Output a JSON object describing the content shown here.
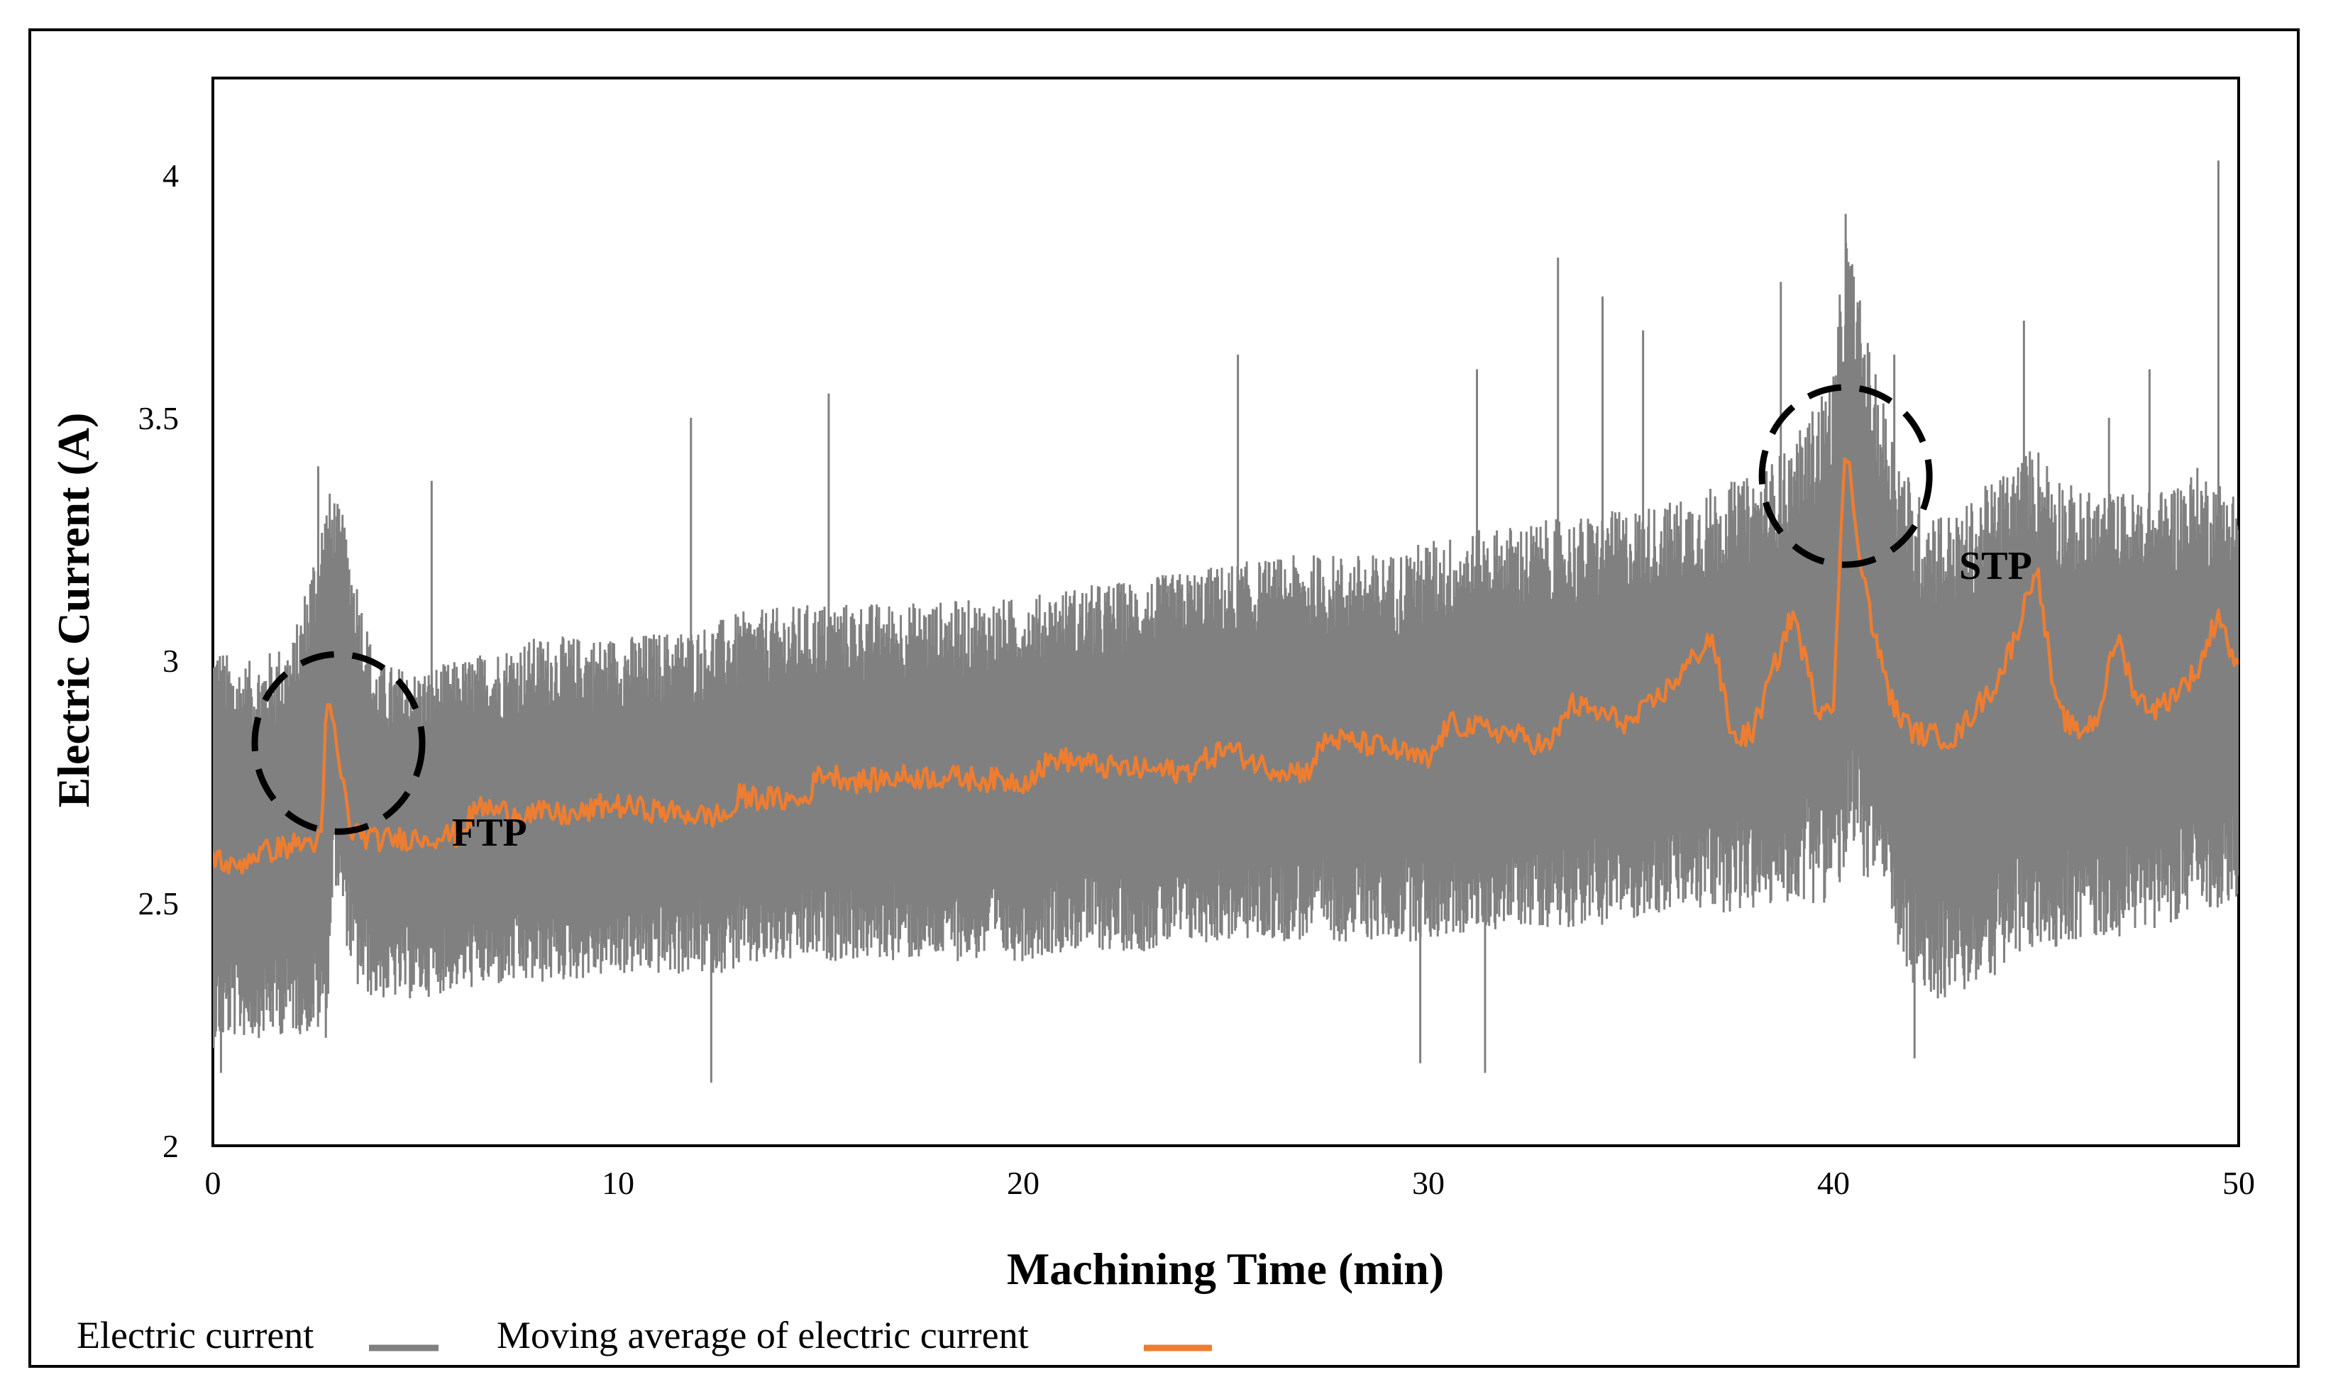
{
  "chart_data": {
    "type": "line",
    "xlabel": "Machining Time (min)",
    "ylabel": "Electric Current (A)",
    "xlim": [
      0,
      50
    ],
    "ylim": [
      2,
      4.2
    ],
    "x_ticks": [
      0,
      10,
      20,
      30,
      40,
      50
    ],
    "y_ticks": [
      2,
      2.5,
      3,
      3.5,
      4
    ],
    "grid": false,
    "legend_position": "bottom-left",
    "colors": {
      "electric_current": "#808080",
      "moving_average": "#ED7D31"
    },
    "series": [
      {
        "name": "Electric current",
        "x": [
          0,
          0.5,
          1,
          2,
          2.8,
          3,
          3.5,
          4,
          5,
          6,
          8,
          10,
          12,
          13,
          15,
          17,
          20,
          21,
          23,
          25,
          27,
          29,
          30,
          32,
          34,
          36,
          37,
          38,
          39,
          40,
          40.3,
          41,
          42,
          43,
          44,
          45,
          46,
          47,
          48,
          49,
          50
        ],
        "upper_envelope": [
          3.05,
          3.0,
          3.0,
          3.05,
          3.35,
          3.35,
          3.2,
          3.0,
          2.98,
          3.0,
          3.05,
          3.05,
          3.07,
          3.1,
          3.12,
          3.12,
          3.13,
          3.15,
          3.17,
          3.2,
          3.22,
          3.22,
          3.25,
          3.28,
          3.3,
          3.33,
          3.36,
          3.38,
          3.45,
          3.6,
          3.9,
          3.6,
          3.35,
          3.3,
          3.38,
          3.45,
          3.35,
          3.35,
          3.35,
          3.4,
          3.35
        ],
        "lower_envelope": [
          2.2,
          2.22,
          2.22,
          2.23,
          2.22,
          2.55,
          2.32,
          2.3,
          2.3,
          2.32,
          2.33,
          2.35,
          2.35,
          2.36,
          2.38,
          2.38,
          2.38,
          2.4,
          2.4,
          2.42,
          2.42,
          2.42,
          2.42,
          2.45,
          2.45,
          2.48,
          2.48,
          2.48,
          2.5,
          2.5,
          2.55,
          2.55,
          2.3,
          2.3,
          2.35,
          2.4,
          2.42,
          2.43,
          2.45,
          2.48,
          2.5
        ],
        "spikes": [
          {
            "x": 2.6,
            "y": 3.4
          },
          {
            "x": 3.2,
            "y": 3.3
          },
          {
            "x": 5.4,
            "y": 3.37
          },
          {
            "x": 11.8,
            "y": 3.5
          },
          {
            "x": 15.2,
            "y": 3.55
          },
          {
            "x": 25.3,
            "y": 3.63
          },
          {
            "x": 31.2,
            "y": 3.6
          },
          {
            "x": 33.2,
            "y": 3.83
          },
          {
            "x": 34.3,
            "y": 3.75
          },
          {
            "x": 35.3,
            "y": 3.68
          },
          {
            "x": 38.7,
            "y": 3.78
          },
          {
            "x": 40.3,
            "y": 3.92
          },
          {
            "x": 41.5,
            "y": 3.63
          },
          {
            "x": 44.7,
            "y": 3.7
          },
          {
            "x": 46.8,
            "y": 3.5
          },
          {
            "x": 47.8,
            "y": 3.6
          },
          {
            "x": 49.5,
            "y": 4.03
          },
          {
            "x": 12.3,
            "y": 2.13
          },
          {
            "x": 29.8,
            "y": 2.17
          },
          {
            "x": 31.4,
            "y": 2.15
          },
          {
            "x": 42.0,
            "y": 2.18
          },
          {
            "x": 0.2,
            "y": 2.15
          }
        ]
      },
      {
        "name": "Moving average of electric current",
        "x": [
          0,
          0.5,
          1,
          2,
          2.7,
          2.8,
          3,
          3.4,
          4,
          6,
          6.6,
          7,
          9,
          9.6,
          10,
          12,
          12.8,
          13,
          14.6,
          15,
          16,
          17,
          18,
          20,
          20.8,
          22,
          24,
          25,
          26,
          27,
          27.5,
          29,
          30,
          30.5,
          32,
          33,
          33.5,
          35,
          36,
          37,
          37.5,
          38,
          39,
          39.6,
          40,
          40.3,
          40.6,
          41,
          41.5,
          42,
          43,
          43.5,
          44,
          44.5,
          45,
          45.5,
          46,
          46.5,
          47,
          47.5,
          48,
          49,
          49.5,
          50
        ],
        "values": [
          2.6,
          2.57,
          2.6,
          2.62,
          2.63,
          2.93,
          2.85,
          2.65,
          2.63,
          2.64,
          2.7,
          2.69,
          2.68,
          2.7,
          2.7,
          2.68,
          2.68,
          2.72,
          2.71,
          2.77,
          2.75,
          2.76,
          2.76,
          2.75,
          2.8,
          2.78,
          2.77,
          2.82,
          2.78,
          2.77,
          2.84,
          2.82,
          2.79,
          2.87,
          2.85,
          2.82,
          2.91,
          2.87,
          2.95,
          3.05,
          2.84,
          2.85,
          3.1,
          2.9,
          2.92,
          3.45,
          3.25,
          3.05,
          2.9,
          2.85,
          2.84,
          2.9,
          2.95,
          3.05,
          3.2,
          2.9,
          2.85,
          2.88,
          3.05,
          2.92,
          2.9,
          2.98,
          3.1,
          2.97
        ]
      }
    ],
    "annotations": [
      {
        "text": "FTP",
        "x": 3.1,
        "y": 2.83
      },
      {
        "text": "STP",
        "x": 40.3,
        "y": 3.38
      }
    ]
  }
}
